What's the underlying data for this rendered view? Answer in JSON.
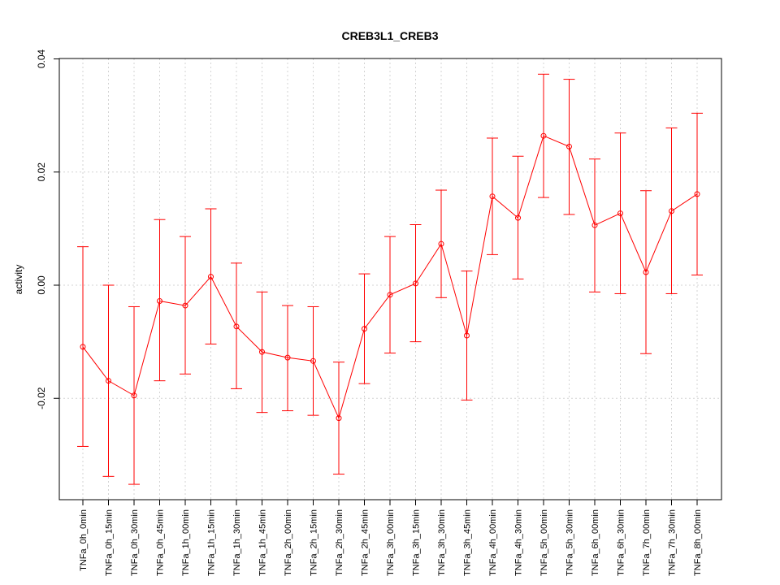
{
  "chart_data": {
    "type": "line",
    "title": "CREB3L1_CREB3",
    "xlabel": "",
    "ylabel": "activity",
    "ylim": [
      -0.0375,
      0.04
    ],
    "yticks": [
      -0.02,
      0.0,
      0.02,
      0.04
    ],
    "ytick_labels": [
      "-0.02",
      "0.00",
      "0.02",
      "0.04"
    ],
    "grid": true,
    "colors": {
      "series": "#ff0000",
      "grid": "#d3d3d3",
      "axis": "#000000"
    },
    "categories": [
      "TNFa_0h_0min",
      "TNFa_0h_15min",
      "TNFa_0h_30min",
      "TNFa_0h_45min",
      "TNFa_1h_00min",
      "TNFa_1h_15min",
      "TNFa_1h_30min",
      "TNFa_1h_45min",
      "TNFa_2h_00min",
      "TNFa_2h_15min",
      "TNFa_2h_30min",
      "TNFa_2h_45min",
      "TNFa_3h_00min",
      "TNFa_3h_15min",
      "TNFa_3h_30min",
      "TNFa_3h_45min",
      "TNFa_4h_00min",
      "TNFa_4h_30min",
      "TNFa_5h_00min",
      "TNFa_5h_30min",
      "TNFa_6h_00min",
      "TNFa_6h_30min",
      "TNFa_7h_00min",
      "TNFa_7h_30min",
      "TNFa_8h_00min"
    ],
    "values": [
      -0.0109,
      -0.0169,
      -0.0195,
      -0.0028,
      -0.0036,
      0.0015,
      -0.0073,
      -0.0118,
      -0.0128,
      -0.0134,
      -0.0235,
      -0.0077,
      -0.0017,
      0.0003,
      0.0073,
      -0.0089,
      0.0157,
      0.0119,
      0.0264,
      0.0245,
      0.0106,
      0.0127,
      0.0023,
      0.0131,
      0.0161
    ],
    "lower": [
      -0.0285,
      -0.0338,
      -0.0352,
      -0.0169,
      -0.0157,
      -0.0104,
      -0.0183,
      -0.0225,
      -0.0222,
      -0.023,
      -0.0334,
      -0.0174,
      -0.012,
      -0.01,
      -0.0022,
      -0.0203,
      0.0054,
      0.0011,
      0.0155,
      0.0125,
      -0.0012,
      -0.0015,
      -0.0121,
      -0.0015,
      0.0018
    ],
    "upper": [
      0.0068,
      0.0,
      -0.0038,
      0.0116,
      0.0086,
      0.0135,
      0.0039,
      -0.0012,
      -0.0036,
      -0.0038,
      -0.0136,
      0.002,
      0.0086,
      0.0107,
      0.0168,
      0.0025,
      0.026,
      0.0228,
      0.0373,
      0.0364,
      0.0223,
      0.0269,
      0.0167,
      0.0278,
      0.0304
    ]
  }
}
